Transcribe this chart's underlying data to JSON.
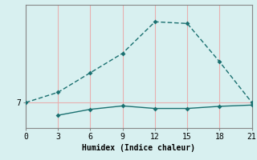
{
  "title": "",
  "xlabel": "Humidex (Indice chaleur)",
  "ylabel": "",
  "bg_color": "#d8f0f0",
  "line_color": "#1a7070",
  "grid_color": "#e8b0b0",
  "upper_x": [
    0,
    3,
    6,
    9,
    12,
    15,
    18,
    21
  ],
  "upper_y": [
    7.0,
    8.2,
    10.5,
    12.8,
    16.5,
    16.3,
    11.8,
    7.0
  ],
  "lower_x": [
    3,
    6,
    9,
    12,
    15,
    18,
    21
  ],
  "lower_y": [
    5.5,
    6.2,
    6.6,
    6.3,
    6.3,
    6.55,
    6.7
  ],
  "yticks": [
    7
  ],
  "xticks": [
    0,
    3,
    6,
    9,
    12,
    15,
    18,
    21
  ],
  "xlim": [
    0,
    21
  ],
  "ylim": [
    4.0,
    18.5
  ]
}
